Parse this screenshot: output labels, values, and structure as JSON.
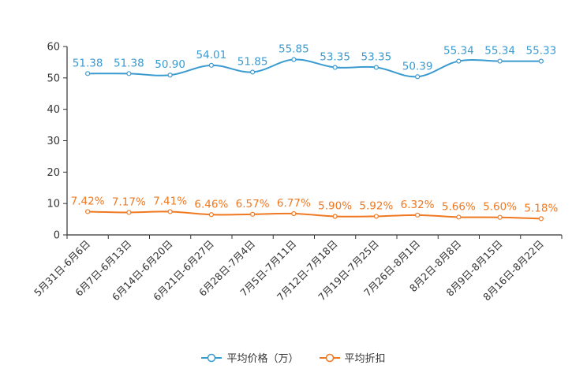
{
  "chart_data": {
    "type": "line",
    "categories": [
      "5月31日-6月6日",
      "6月7日-6月13日",
      "6月14日-6月20日",
      "6月21日-6月27日",
      "6月28日-7月4日",
      "7月5日-7月11日",
      "7月12日-7月18日",
      "7月19日-7月25日",
      "7月26日-8月1日",
      "8月2日-8月8日",
      "8月9日-8月15日",
      "8月16日-8月22日"
    ],
    "ylim": [
      0,
      60
    ],
    "yticks": [
      "0",
      "10",
      "20",
      "30",
      "40",
      "50",
      "60"
    ],
    "series": [
      {
        "name": "平均价格（万）",
        "color": "#3a9bd0",
        "values": [
          51.38,
          51.38,
          50.9,
          54.01,
          51.85,
          55.85,
          53.35,
          53.35,
          50.39,
          55.34,
          55.34,
          55.33
        ],
        "labels": [
          "51.38",
          "51.38",
          "50.90",
          "54.01",
          "51.85",
          "55.85",
          "53.35",
          "53.35",
          "50.39",
          "55.34",
          "55.34",
          "55.33"
        ]
      },
      {
        "name": "平均折扣",
        "color": "#f07820",
        "values": [
          7.42,
          7.17,
          7.41,
          6.46,
          6.57,
          6.77,
          5.9,
          5.92,
          6.32,
          5.66,
          5.6,
          5.18
        ],
        "labels": [
          "7.42%",
          "7.17%",
          "7.41%",
          "6.46%",
          "6.57%",
          "6.77%",
          "5.90%",
          "5.92%",
          "6.32%",
          "5.66%",
          "5.60%",
          "5.18%"
        ]
      }
    ],
    "legend_position": "bottom-center"
  }
}
